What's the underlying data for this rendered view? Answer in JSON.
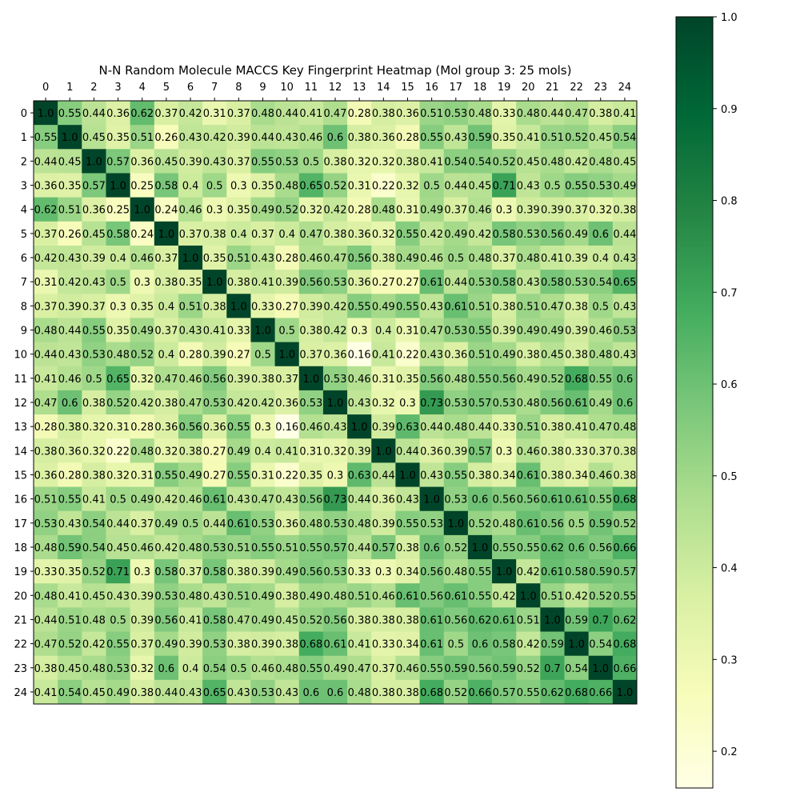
{
  "chart_data": {
    "type": "heatmap",
    "title": "N-N Random Molecule MACCS Key Fingerprint Heatmap (Mol group 3: 25 mols)",
    "x_tick_labels": [
      "0",
      "1",
      "2",
      "3",
      "4",
      "5",
      "6",
      "7",
      "8",
      "9",
      "10",
      "11",
      "12",
      "13",
      "14",
      "15",
      "16",
      "17",
      "18",
      "19",
      "20",
      "21",
      "22",
      "23",
      "24"
    ],
    "y_tick_labels": [
      "0",
      "1",
      "2",
      "3",
      "4",
      "5",
      "6",
      "7",
      "8",
      "9",
      "10",
      "11",
      "12",
      "13",
      "14",
      "15",
      "16",
      "17",
      "18",
      "19",
      "20",
      "21",
      "22",
      "23",
      "24"
    ],
    "values": [
      [
        "1.0",
        "0.55",
        "0.44",
        "0.36",
        "0.62",
        "0.37",
        "0.42",
        "0.31",
        "0.37",
        "0.48",
        "0.44",
        "0.41",
        "0.47",
        "0.28",
        "0.38",
        "0.36",
        "0.51",
        "0.53",
        "0.48",
        "0.33",
        "0.48",
        "0.44",
        "0.47",
        "0.38",
        "0.41"
      ],
      [
        "0.55",
        "1.0",
        "0.45",
        "0.35",
        "0.51",
        "0.26",
        "0.43",
        "0.42",
        "0.39",
        "0.44",
        "0.43",
        "0.46",
        "0.6",
        "0.38",
        "0.36",
        "0.28",
        "0.55",
        "0.43",
        "0.59",
        "0.35",
        "0.41",
        "0.51",
        "0.52",
        "0.45",
        "0.54"
      ],
      [
        "0.44",
        "0.45",
        "1.0",
        "0.57",
        "0.36",
        "0.45",
        "0.39",
        "0.43",
        "0.37",
        "0.55",
        "0.53",
        "0.5",
        "0.38",
        "0.32",
        "0.32",
        "0.38",
        "0.41",
        "0.54",
        "0.54",
        "0.52",
        "0.45",
        "0.48",
        "0.42",
        "0.48",
        "0.45"
      ],
      [
        "0.36",
        "0.35",
        "0.57",
        "1.0",
        "0.25",
        "0.58",
        "0.4",
        "0.5",
        "0.3",
        "0.35",
        "0.48",
        "0.65",
        "0.52",
        "0.31",
        "0.22",
        "0.32",
        "0.5",
        "0.44",
        "0.45",
        "0.71",
        "0.43",
        "0.5",
        "0.55",
        "0.53",
        "0.49"
      ],
      [
        "0.62",
        "0.51",
        "0.36",
        "0.25",
        "1.0",
        "0.24",
        "0.46",
        "0.3",
        "0.35",
        "0.49",
        "0.52",
        "0.32",
        "0.42",
        "0.28",
        "0.48",
        "0.31",
        "0.49",
        "0.37",
        "0.46",
        "0.3",
        "0.39",
        "0.39",
        "0.37",
        "0.32",
        "0.38"
      ],
      [
        "0.37",
        "0.26",
        "0.45",
        "0.58",
        "0.24",
        "1.0",
        "0.37",
        "0.38",
        "0.4",
        "0.37",
        "0.4",
        "0.47",
        "0.38",
        "0.36",
        "0.32",
        "0.55",
        "0.42",
        "0.49",
        "0.42",
        "0.58",
        "0.53",
        "0.56",
        "0.49",
        "0.6",
        "0.44"
      ],
      [
        "0.42",
        "0.43",
        "0.39",
        "0.4",
        "0.46",
        "0.37",
        "1.0",
        "0.35",
        "0.51",
        "0.43",
        "0.28",
        "0.46",
        "0.47",
        "0.56",
        "0.38",
        "0.49",
        "0.46",
        "0.5",
        "0.48",
        "0.37",
        "0.48",
        "0.41",
        "0.39",
        "0.4",
        "0.43"
      ],
      [
        "0.31",
        "0.42",
        "0.43",
        "0.5",
        "0.3",
        "0.38",
        "0.35",
        "1.0",
        "0.38",
        "0.41",
        "0.39",
        "0.56",
        "0.53",
        "0.36",
        "0.27",
        "0.27",
        "0.61",
        "0.44",
        "0.53",
        "0.58",
        "0.43",
        "0.58",
        "0.53",
        "0.54",
        "0.65"
      ],
      [
        "0.37",
        "0.39",
        "0.37",
        "0.3",
        "0.35",
        "0.4",
        "0.51",
        "0.38",
        "1.0",
        "0.33",
        "0.27",
        "0.39",
        "0.42",
        "0.55",
        "0.49",
        "0.55",
        "0.43",
        "0.61",
        "0.51",
        "0.38",
        "0.51",
        "0.47",
        "0.38",
        "0.5",
        "0.43"
      ],
      [
        "0.48",
        "0.44",
        "0.55",
        "0.35",
        "0.49",
        "0.37",
        "0.43",
        "0.41",
        "0.33",
        "1.0",
        "0.5",
        "0.38",
        "0.42",
        "0.3",
        "0.4",
        "0.31",
        "0.47",
        "0.53",
        "0.55",
        "0.39",
        "0.49",
        "0.49",
        "0.39",
        "0.46",
        "0.53"
      ],
      [
        "0.44",
        "0.43",
        "0.53",
        "0.48",
        "0.52",
        "0.4",
        "0.28",
        "0.39",
        "0.27",
        "0.5",
        "1.0",
        "0.37",
        "0.36",
        "0.16",
        "0.41",
        "0.22",
        "0.43",
        "0.36",
        "0.51",
        "0.49",
        "0.38",
        "0.45",
        "0.38",
        "0.48",
        "0.43"
      ],
      [
        "0.41",
        "0.46",
        "0.5",
        "0.65",
        "0.32",
        "0.47",
        "0.46",
        "0.56",
        "0.39",
        "0.38",
        "0.37",
        "1.0",
        "0.53",
        "0.46",
        "0.31",
        "0.35",
        "0.56",
        "0.48",
        "0.55",
        "0.56",
        "0.49",
        "0.52",
        "0.68",
        "0.55",
        "0.6"
      ],
      [
        "0.47",
        "0.6",
        "0.38",
        "0.52",
        "0.42",
        "0.38",
        "0.47",
        "0.53",
        "0.42",
        "0.42",
        "0.36",
        "0.53",
        "1.0",
        "0.43",
        "0.32",
        "0.3",
        "0.73",
        "0.53",
        "0.57",
        "0.53",
        "0.48",
        "0.56",
        "0.61",
        "0.49",
        "0.6"
      ],
      [
        "0.28",
        "0.38",
        "0.32",
        "0.31",
        "0.28",
        "0.36",
        "0.56",
        "0.36",
        "0.55",
        "0.3",
        "0.16",
        "0.46",
        "0.43",
        "1.0",
        "0.39",
        "0.63",
        "0.44",
        "0.48",
        "0.44",
        "0.33",
        "0.51",
        "0.38",
        "0.41",
        "0.47",
        "0.48"
      ],
      [
        "0.38",
        "0.36",
        "0.32",
        "0.22",
        "0.48",
        "0.32",
        "0.38",
        "0.27",
        "0.49",
        "0.4",
        "0.41",
        "0.31",
        "0.32",
        "0.39",
        "1.0",
        "0.44",
        "0.36",
        "0.39",
        "0.57",
        "0.3",
        "0.46",
        "0.38",
        "0.33",
        "0.37",
        "0.38"
      ],
      [
        "0.36",
        "0.28",
        "0.38",
        "0.32",
        "0.31",
        "0.55",
        "0.49",
        "0.27",
        "0.55",
        "0.31",
        "0.22",
        "0.35",
        "0.3",
        "0.63",
        "0.44",
        "1.0",
        "0.43",
        "0.55",
        "0.38",
        "0.34",
        "0.61",
        "0.38",
        "0.34",
        "0.46",
        "0.38"
      ],
      [
        "0.51",
        "0.55",
        "0.41",
        "0.5",
        "0.49",
        "0.42",
        "0.46",
        "0.61",
        "0.43",
        "0.47",
        "0.43",
        "0.56",
        "0.73",
        "0.44",
        "0.36",
        "0.43",
        "1.0",
        "0.53",
        "0.6",
        "0.56",
        "0.56",
        "0.61",
        "0.61",
        "0.55",
        "0.68"
      ],
      [
        "0.53",
        "0.43",
        "0.54",
        "0.44",
        "0.37",
        "0.49",
        "0.5",
        "0.44",
        "0.61",
        "0.53",
        "0.36",
        "0.48",
        "0.53",
        "0.48",
        "0.39",
        "0.55",
        "0.53",
        "1.0",
        "0.52",
        "0.48",
        "0.61",
        "0.56",
        "0.5",
        "0.59",
        "0.52"
      ],
      [
        "0.48",
        "0.59",
        "0.54",
        "0.45",
        "0.46",
        "0.42",
        "0.48",
        "0.53",
        "0.51",
        "0.55",
        "0.51",
        "0.55",
        "0.57",
        "0.44",
        "0.57",
        "0.38",
        "0.6",
        "0.52",
        "1.0",
        "0.55",
        "0.55",
        "0.62",
        "0.6",
        "0.56",
        "0.66"
      ],
      [
        "0.33",
        "0.35",
        "0.52",
        "0.71",
        "0.3",
        "0.58",
        "0.37",
        "0.58",
        "0.38",
        "0.39",
        "0.49",
        "0.56",
        "0.53",
        "0.33",
        "0.3",
        "0.34",
        "0.56",
        "0.48",
        "0.55",
        "1.0",
        "0.42",
        "0.61",
        "0.58",
        "0.59",
        "0.57"
      ],
      [
        "0.48",
        "0.41",
        "0.45",
        "0.43",
        "0.39",
        "0.53",
        "0.48",
        "0.43",
        "0.51",
        "0.49",
        "0.38",
        "0.49",
        "0.48",
        "0.51",
        "0.46",
        "0.61",
        "0.56",
        "0.61",
        "0.55",
        "0.42",
        "1.0",
        "0.51",
        "0.42",
        "0.52",
        "0.55"
      ],
      [
        "0.44",
        "0.51",
        "0.48",
        "0.5",
        "0.39",
        "0.56",
        "0.41",
        "0.58",
        "0.47",
        "0.49",
        "0.45",
        "0.52",
        "0.56",
        "0.38",
        "0.38",
        "0.38",
        "0.61",
        "0.56",
        "0.62",
        "0.61",
        "0.51",
        "1.0",
        "0.59",
        "0.7",
        "0.62"
      ],
      [
        "0.47",
        "0.52",
        "0.42",
        "0.55",
        "0.37",
        "0.49",
        "0.39",
        "0.53",
        "0.38",
        "0.39",
        "0.38",
        "0.68",
        "0.61",
        "0.41",
        "0.33",
        "0.34",
        "0.61",
        "0.5",
        "0.6",
        "0.58",
        "0.42",
        "0.59",
        "1.0",
        "0.54",
        "0.68"
      ],
      [
        "0.38",
        "0.45",
        "0.48",
        "0.53",
        "0.32",
        "0.6",
        "0.4",
        "0.54",
        "0.5",
        "0.46",
        "0.48",
        "0.55",
        "0.49",
        "0.47",
        "0.37",
        "0.46",
        "0.55",
        "0.59",
        "0.56",
        "0.59",
        "0.52",
        "0.7",
        "0.54",
        "1.0",
        "0.66"
      ],
      [
        "0.41",
        "0.54",
        "0.45",
        "0.49",
        "0.38",
        "0.44",
        "0.43",
        "0.65",
        "0.43",
        "0.53",
        "0.43",
        "0.6",
        "0.6",
        "0.48",
        "0.38",
        "0.38",
        "0.68",
        "0.52",
        "0.66",
        "0.57",
        "0.55",
        "0.62",
        "0.68",
        "0.66",
        "1.0"
      ]
    ],
    "colormap": "Greens",
    "colorbar": {
      "vmin": 0.16,
      "vmax": 1.0,
      "tick_values": [
        0.2,
        0.3,
        0.4,
        0.5,
        0.6,
        0.7,
        0.8,
        0.9,
        1.0
      ],
      "tick_labels": [
        "0.2",
        "0.3",
        "0.4",
        "0.5",
        "0.6",
        "0.7",
        "0.8",
        "0.9",
        "1.0"
      ]
    },
    "colormap_stops": [
      "#ffffe5",
      "#f7fcb9",
      "#d9f0a3",
      "#addd8e",
      "#78c679",
      "#41ab5d",
      "#238443",
      "#006837",
      "#004529"
    ],
    "x_ticks_position": "top",
    "grid": false
  }
}
